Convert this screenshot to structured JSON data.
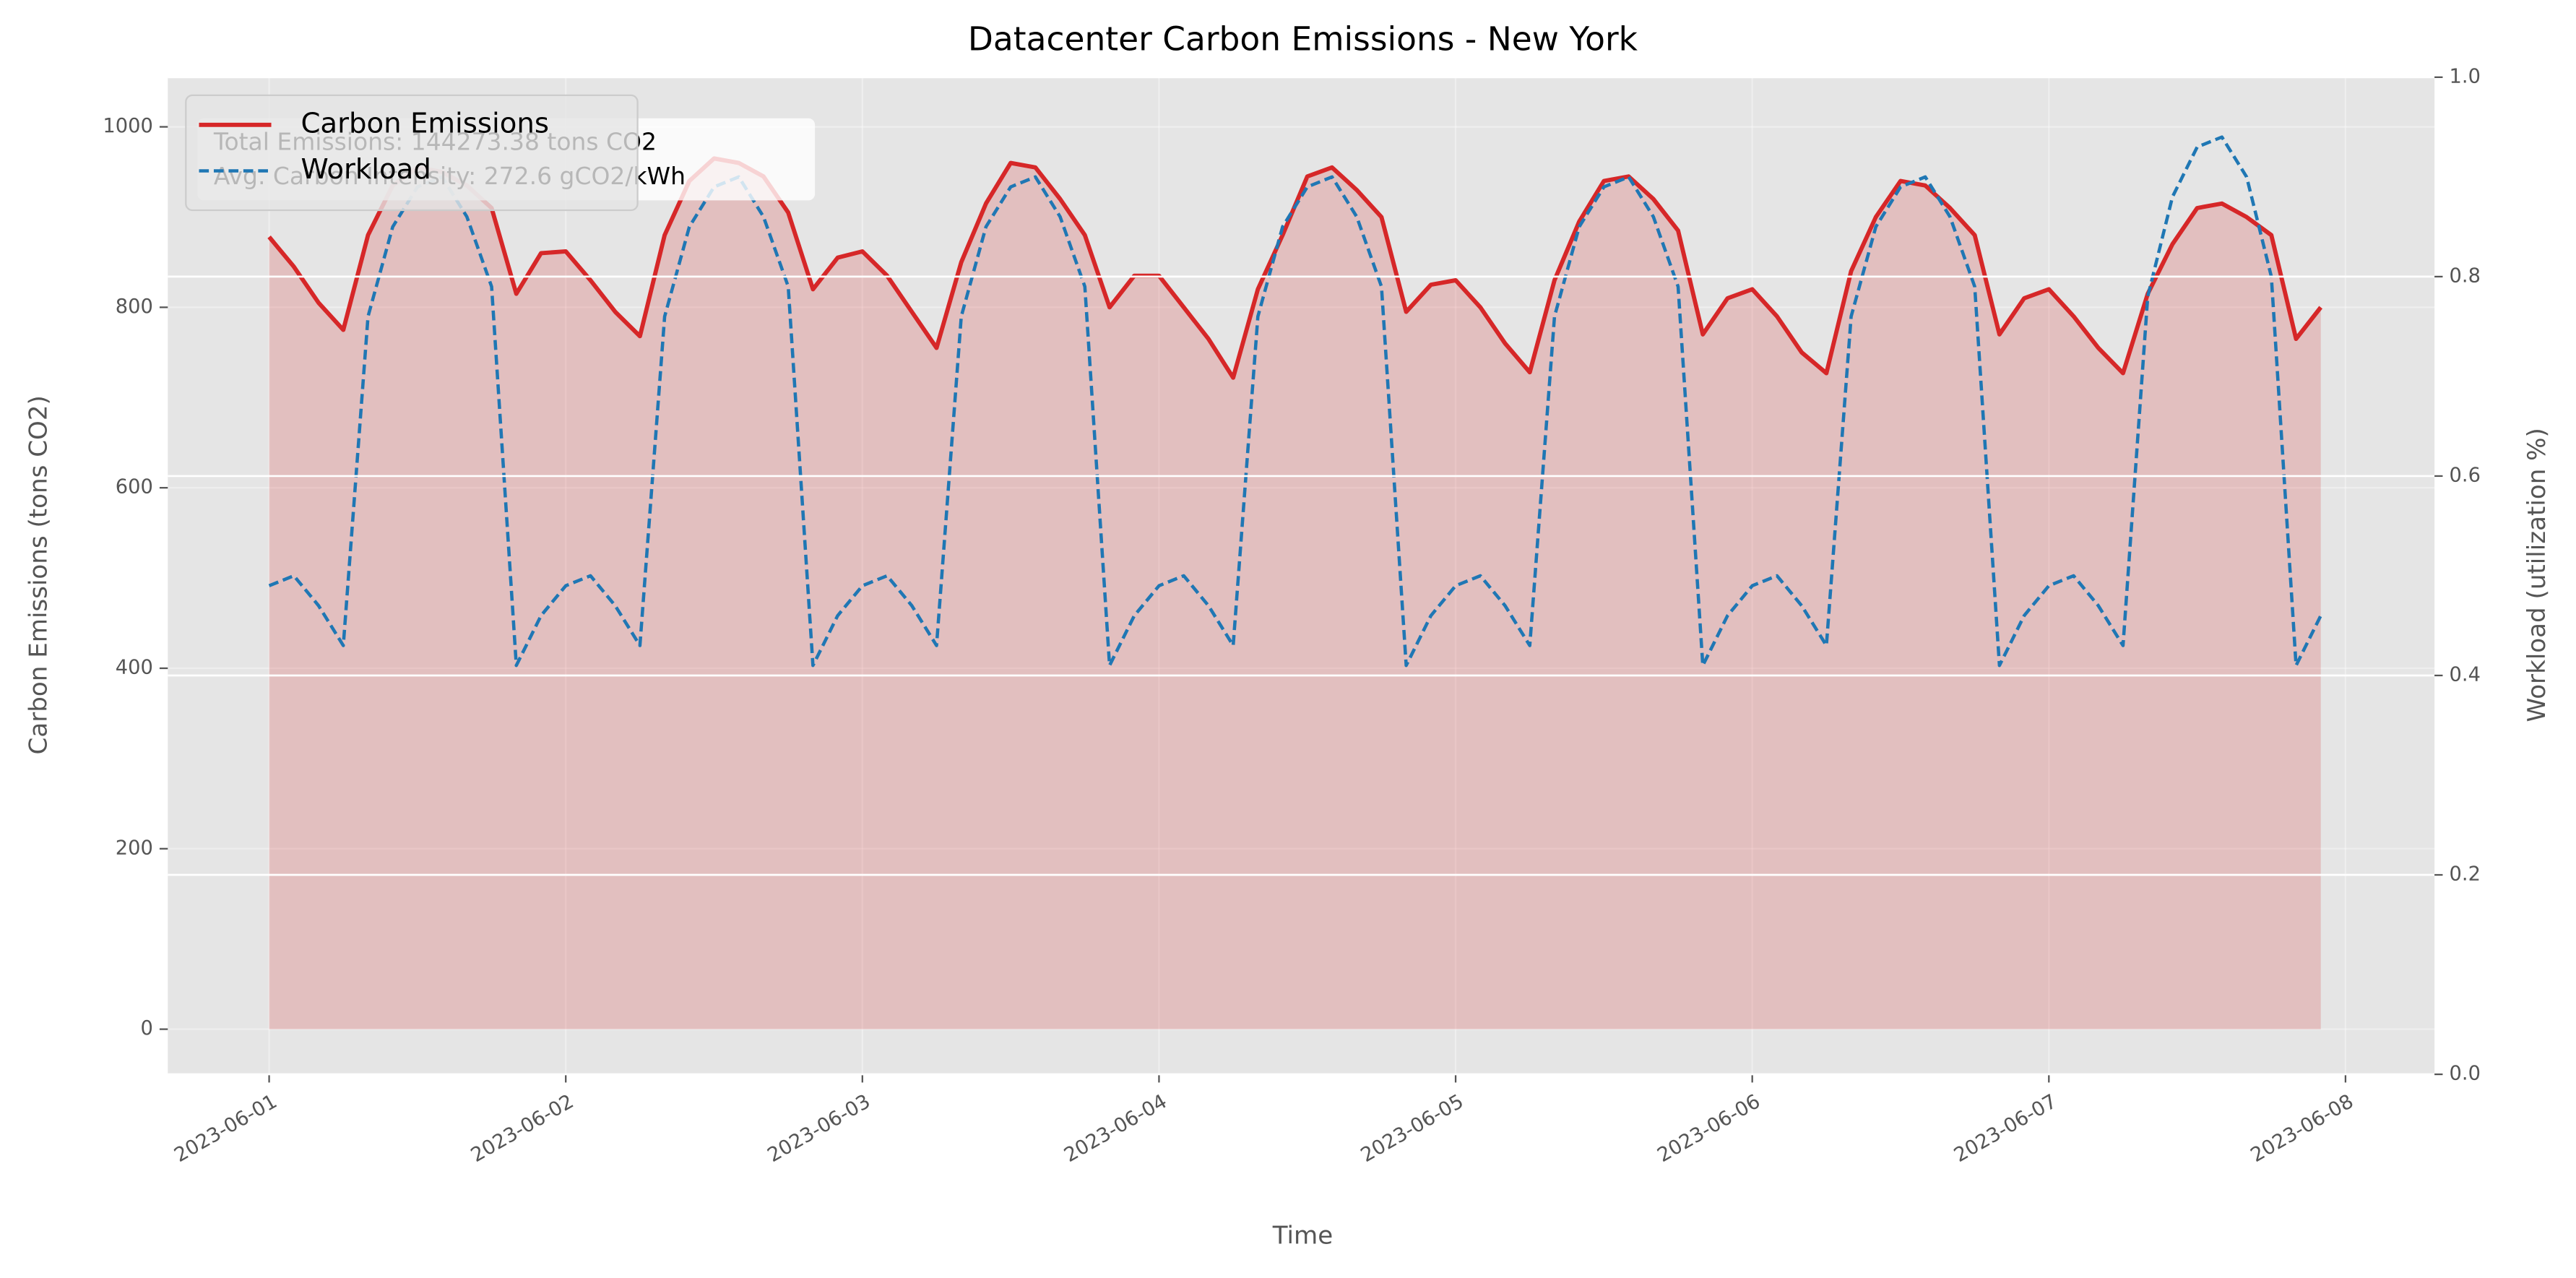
{
  "chart_data": {
    "type": "line",
    "title": "Datacenter Carbon Emissions - New York",
    "x_label": "Time",
    "y_label": "Carbon Emissions (tons CO2)",
    "y2_label": "Workload (utilization %)",
    "annotations": [
      "Total Emissions: 144273.38 tons CO2",
      "Avg. Carbon Intensity: 272.6 gCO2/kWh"
    ],
    "x": [
      0,
      2,
      4,
      6,
      8,
      10,
      12,
      14,
      16,
      18,
      20,
      22,
      24,
      26,
      28,
      30,
      32,
      34,
      36,
      38,
      40,
      42,
      44,
      46,
      48,
      50,
      52,
      54,
      56,
      58,
      60,
      62,
      64,
      66,
      68,
      70,
      72,
      74,
      76,
      78,
      80,
      82,
      84,
      86,
      88,
      90,
      92,
      94,
      96,
      98,
      100,
      102,
      104,
      106,
      108,
      110,
      112,
      114,
      116,
      118,
      120,
      122,
      124,
      126,
      128,
      130,
      132,
      134,
      136,
      138,
      140,
      142,
      144,
      146,
      148,
      150,
      152,
      154,
      156,
      158,
      160,
      162,
      164,
      166
    ],
    "xlim": [
      -8.2,
      175.2
    ],
    "xticks": [
      {
        "value": 0,
        "label": "2023-06-01"
      },
      {
        "value": 24,
        "label": "2023-06-02"
      },
      {
        "value": 48,
        "label": "2023-06-03"
      },
      {
        "value": 72,
        "label": "2023-06-04"
      },
      {
        "value": 96,
        "label": "2023-06-05"
      },
      {
        "value": 120,
        "label": "2023-06-06"
      },
      {
        "value": 144,
        "label": "2023-06-07"
      },
      {
        "value": 168,
        "label": "2023-06-08"
      }
    ],
    "ylim": [
      -50,
      1055
    ],
    "yticks": [
      0,
      200,
      400,
      600,
      800,
      1000
    ],
    "y2lim": [
      0,
      1
    ],
    "y2ticks": [
      {
        "value": 0,
        "label": "0.0"
      },
      0.2,
      0.4,
      0.6,
      0.8,
      {
        "value": 1,
        "label": "1.0"
      }
    ],
    "grid": true,
    "legend": "upper left",
    "series": [
      {
        "name": "Carbon Emissions",
        "color": "#d62728",
        "fill": true,
        "values": [
          878,
          845,
          805,
          775,
          880,
          935,
          955,
          950,
          935,
          910,
          815,
          860,
          862,
          830,
          795,
          768,
          880,
          940,
          965,
          960,
          945,
          905,
          820,
          855,
          862,
          835,
          795,
          755,
          850,
          915,
          960,
          955,
          920,
          880,
          800,
          835,
          835,
          800,
          765,
          722,
          820,
          880,
          945,
          955,
          930,
          900,
          795,
          825,
          830,
          800,
          760,
          728,
          830,
          895,
          940,
          945,
          920,
          885,
          770,
          810,
          820,
          790,
          750,
          727,
          840,
          900,
          940,
          935,
          910,
          880,
          770,
          810,
          820,
          790,
          755,
          727,
          815,
          870,
          910,
          915,
          900,
          880,
          765,
          800
        ]
      },
      {
        "name": "Workload",
        "color": "#1f77b4",
        "axis": "y2",
        "dashed": true,
        "values": [
          0.49,
          0.5,
          0.47,
          0.43,
          0.76,
          0.85,
          0.89,
          0.9,
          0.86,
          0.79,
          0.41,
          0.46,
          0.49,
          0.5,
          0.47,
          0.43,
          0.76,
          0.85,
          0.89,
          0.9,
          0.86,
          0.79,
          0.41,
          0.46,
          0.49,
          0.5,
          0.47,
          0.43,
          0.76,
          0.85,
          0.89,
          0.9,
          0.86,
          0.79,
          0.41,
          0.46,
          0.49,
          0.5,
          0.47,
          0.43,
          0.76,
          0.85,
          0.89,
          0.9,
          0.86,
          0.79,
          0.41,
          0.46,
          0.49,
          0.5,
          0.47,
          0.43,
          0.76,
          0.85,
          0.89,
          0.9,
          0.86,
          0.79,
          0.41,
          0.46,
          0.49,
          0.5,
          0.47,
          0.43,
          0.76,
          0.85,
          0.89,
          0.9,
          0.86,
          0.79,
          0.41,
          0.46,
          0.49,
          0.5,
          0.47,
          0.43,
          0.78,
          0.88,
          0.93,
          0.94,
          0.9,
          0.8,
          0.41,
          0.46
        ]
      }
    ]
  }
}
